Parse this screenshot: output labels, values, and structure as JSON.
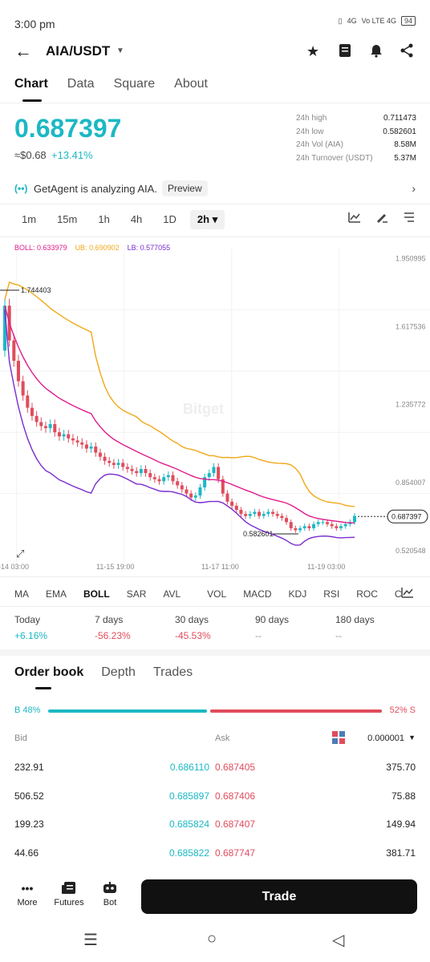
{
  "status": {
    "time": "3:00 pm",
    "net1": "4G",
    "net2": "Vo LTE 4G",
    "battery": "94"
  },
  "header": {
    "pair": "AIA/USDT"
  },
  "icons": {
    "back": "arrow-left-icon",
    "caret": "caret-down-icon",
    "star": "star-icon",
    "notebook": "notebook-icon",
    "alert": "bell-icon",
    "share": "share-icon"
  },
  "tabs": [
    "Chart",
    "Data",
    "Square",
    "About"
  ],
  "ticker": {
    "price": "0.687397",
    "approx": "≈$0.68",
    "change": "+13.41%",
    "stats": [
      {
        "label": "24h high",
        "value": "0.711473"
      },
      {
        "label": "24h low",
        "value": "0.582601"
      },
      {
        "label": "24h Vol (AIA)",
        "value": "8.58M"
      },
      {
        "label": "24h Turnover (USDT)",
        "value": "5.37M"
      }
    ]
  },
  "agent": {
    "text": "GetAgent is analyzing AIA.",
    "preview": "Preview"
  },
  "intervals": [
    "1m",
    "15m",
    "1h",
    "4h",
    "1D",
    "2h ▾"
  ],
  "boll": {
    "boll": "BOLL: 0.633979",
    "ub": "UB: 0.690902",
    "lb": "LB: 0.577055"
  },
  "chart_data": {
    "type": "candlestick",
    "watermark": "Bitget",
    "y_ticks": [
      "1.950995",
      "1.617536",
      "1.235772",
      "0.854007",
      "0.520548"
    ],
    "x_ticks": [
      "-14 03:00",
      "11-15 19:00",
      "11-17 11:00",
      "11-19 03:00"
    ],
    "high_label": "1.744403",
    "low_label": "0.582601",
    "last_price": "0.687397",
    "ylim": [
      0.5,
      2.0
    ],
    "colors": {
      "up": "#1cb8c4",
      "down": "#e04c5c",
      "ub": "#f0a818",
      "boll": "#e01c8c",
      "lb": "#7a2bd0"
    },
    "close": [
      1.72,
      1.55,
      1.45,
      1.35,
      1.28,
      1.22,
      1.18,
      1.15,
      1.13,
      1.12,
      1.14,
      1.1,
      1.08,
      1.09,
      1.07,
      1.06,
      1.05,
      1.04,
      1.02,
      1.03,
      1.0,
      0.98,
      0.96,
      0.95,
      0.94,
      0.95,
      0.93,
      0.92,
      0.91,
      0.9,
      0.92,
      0.9,
      0.88,
      0.87,
      0.86,
      0.88,
      0.89,
      0.86,
      0.84,
      0.82,
      0.8,
      0.78,
      0.79,
      0.83,
      0.88,
      0.9,
      0.93,
      0.87,
      0.8,
      0.76,
      0.74,
      0.72,
      0.7,
      0.69,
      0.7,
      0.71,
      0.69,
      0.7,
      0.71,
      0.7,
      0.69,
      0.68,
      0.66,
      0.63,
      0.62,
      0.63,
      0.64,
      0.63,
      0.65,
      0.66,
      0.66,
      0.65,
      0.64,
      0.63,
      0.64,
      0.65,
      0.66,
      0.69
    ]
  },
  "indicators": [
    "MA",
    "EMA",
    "BOLL",
    "SAR",
    "AVL",
    "VOL",
    "MACD",
    "KDJ",
    "RSI",
    "ROC",
    "C"
  ],
  "performance": [
    {
      "label": "Today",
      "value": "+6.16%",
      "color": "#1cb8c4"
    },
    {
      "label": "7 days",
      "value": "-56.23%",
      "color": "#e04c5c"
    },
    {
      "label": "30 days",
      "value": "-45.53%",
      "color": "#e04c5c"
    },
    {
      "label": "90 days",
      "value": "--",
      "color": "#999999"
    },
    {
      "label": "180 days",
      "value": "--",
      "color": "#999999"
    }
  ],
  "orderbook": {
    "tabs": [
      "Order book",
      "Depth",
      "Trades"
    ],
    "buy_label": "B 48%",
    "sell_label": "52% S",
    "buy_ratio": 0.48,
    "bid_header": "Bid",
    "ask_header": "Ask",
    "precision": "0.000001",
    "rows": [
      {
        "bid_qty": "232.91",
        "bid_px": "0.686110",
        "ask_px": "0.687405",
        "ask_qty": "375.70"
      },
      {
        "bid_qty": "506.52",
        "bid_px": "0.685897",
        "ask_px": "0.687406",
        "ask_qty": "75.88"
      },
      {
        "bid_qty": "199.23",
        "bid_px": "0.685824",
        "ask_px": "0.687407",
        "ask_qty": "149.94"
      },
      {
        "bid_qty": "44.66",
        "bid_px": "0.685822",
        "ask_px": "0.687747",
        "ask_qty": "381.71"
      }
    ]
  },
  "bottom": {
    "more": "More",
    "futures": "Futures",
    "bot": "Bot",
    "trade": "Trade"
  }
}
